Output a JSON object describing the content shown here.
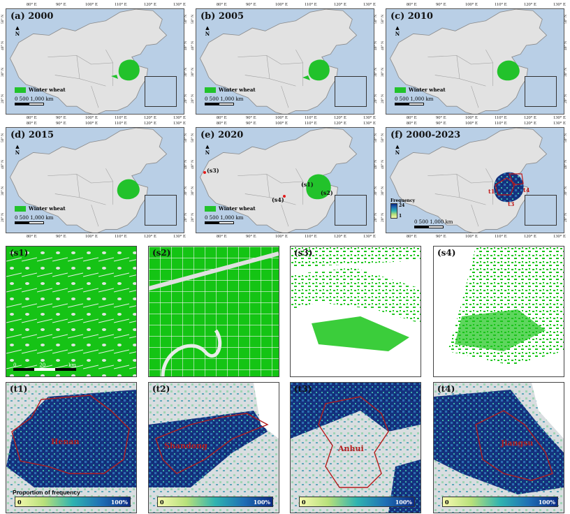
{
  "colors": {
    "wheat": "#22c22b",
    "sea": "#b9cfe6",
    "land": "#e4e4e4",
    "boundary": "#b51d1d",
    "low": "#f6f9b0",
    "high": "#0b2a84"
  },
  "maps": [
    {
      "label": "(a) 2000"
    },
    {
      "label": "(b) 2005"
    },
    {
      "label": "(c) 2010"
    },
    {
      "label": "(d) 2015"
    },
    {
      "label": "(e) 2020"
    },
    {
      "label": "(f) 2000-2023"
    }
  ],
  "lon_ticks": [
    "80° E",
    "90° E",
    "100° E",
    "110° E",
    "120° E",
    "130° E"
  ],
  "lat_ticks": [
    "50° N",
    "40° N",
    "30° N",
    "20° N"
  ],
  "legend": {
    "wheat": "Winter wheat",
    "scale_nums": "0     500  1,000",
    "scale_unit": "km",
    "north": "N",
    "frequency": "Frequency",
    "freq_max": "24",
    "freq_min": "1"
  },
  "sites": {
    "s1": "(s1)",
    "s2": "(s2)",
    "s3": "(s3)",
    "s4": "(s4)",
    "t1": "t1",
    "t2": "t2",
    "t3": "t3",
    "t4": "t4"
  },
  "samples": [
    {
      "label": "(s1)"
    },
    {
      "label": "(s2)"
    },
    {
      "label": "(s3)"
    },
    {
      "label": "(s4)"
    }
  ],
  "sample_scale": {
    "zero": "0",
    "num": "20",
    "unit": "km"
  },
  "provinces": [
    {
      "label": "(t1)",
      "name": "Henan"
    },
    {
      "label": "(t2)",
      "name": "Shandong"
    },
    {
      "label": "(t3)",
      "name": "Anhui"
    },
    {
      "label": "(t4)",
      "name": "Jiangsu"
    }
  ],
  "proportion": {
    "title": "Proportion of frequency",
    "low": "0",
    "high": "100%"
  }
}
